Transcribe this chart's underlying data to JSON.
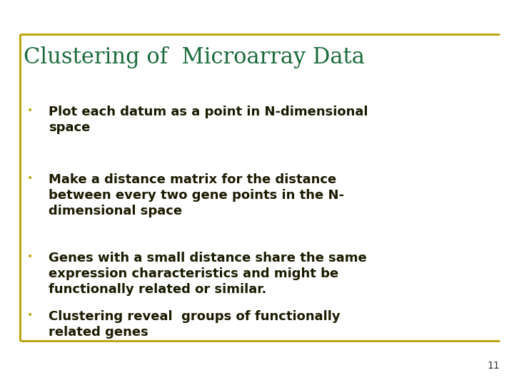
{
  "title": "Clustering of  Microarray Data",
  "title_color": "#1a6b3c",
  "title_fontsize": 22,
  "bullet_color": "#1a1a00",
  "bullet_fontsize": 13,
  "bullet_dot_color": "#b8a000",
  "background_color": "#ffffff",
  "border_color": "#b8a000",
  "slide_number": "11",
  "bullets": [
    "Plot each datum as a point in N-dimensional\nspace",
    "Make a distance matrix for the distance\nbetween every two gene points in the N-\ndimensional space",
    "Genes with a small distance share the same\nexpression characteristics and might be\nfunctionally related or similar.",
    "Clustering reveal  groups of functionally\nrelated genes"
  ]
}
